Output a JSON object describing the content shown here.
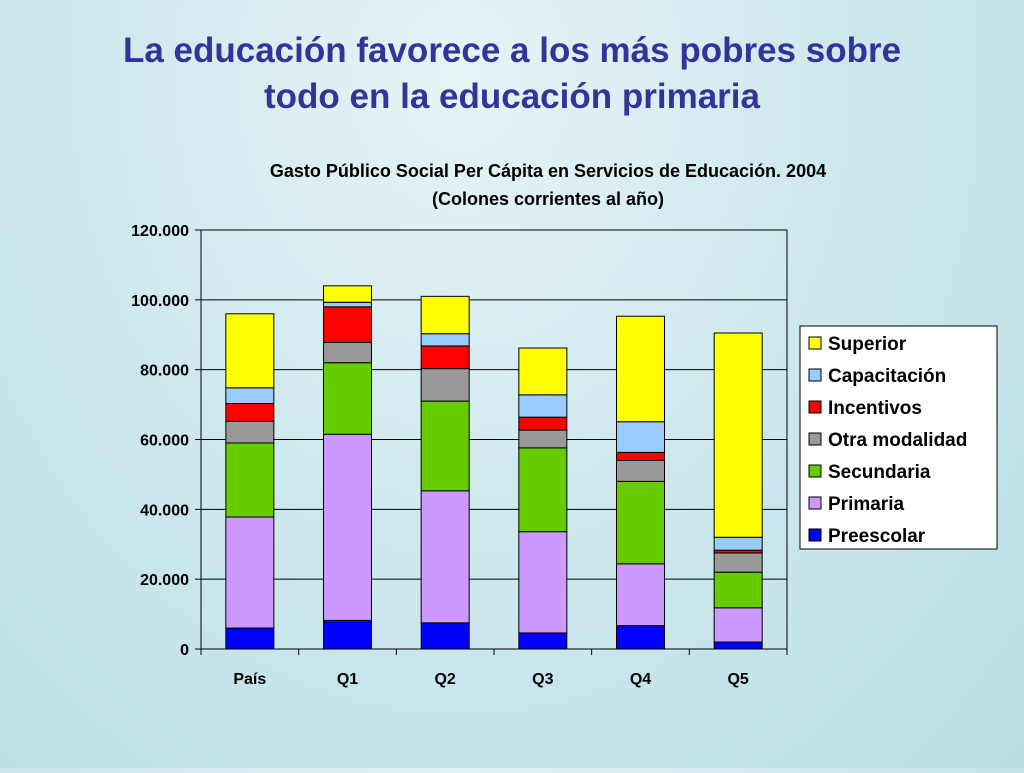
{
  "slide": {
    "title_line1": "La educación favorece a los más pobres sobre",
    "title_line2": "todo en la educación primaria"
  },
  "chart_data": {
    "type": "bar",
    "stacked": true,
    "title": "Gasto Público Social Per Cápita en Servicios de Educación. 2004",
    "subtitle": "(Colones corrientes al año)",
    "categories": [
      "País",
      "Q1",
      "Q2",
      "Q3",
      "Q4",
      "Q5"
    ],
    "ylim": [
      0,
      120000
    ],
    "yticks": [
      0,
      20000,
      40000,
      60000,
      80000,
      100000,
      120000
    ],
    "ytick_labels": [
      "0",
      "20.000",
      "40.000",
      "60.000",
      "80.000",
      "100.000",
      "120.000"
    ],
    "grid": true,
    "legend_position": "right",
    "series": [
      {
        "name": "Preescolar",
        "color": "#0000ff",
        "values": [
          6000,
          8200,
          7500,
          4600,
          6700,
          2000
        ]
      },
      {
        "name": "Primaria",
        "color": "#cc99ff",
        "values": [
          31800,
          53300,
          37800,
          29000,
          17700,
          9800
        ]
      },
      {
        "name": "Secundaria",
        "color": "#66cc00",
        "values": [
          21200,
          20500,
          25700,
          24000,
          23600,
          10200
        ]
      },
      {
        "name": "Otra modalidad",
        "color": "#999999",
        "values": [
          6200,
          5800,
          9300,
          5100,
          6000,
          5500
        ]
      },
      {
        "name": "Incentivos",
        "color": "#ff0000",
        "values": [
          5100,
          10200,
          6500,
          3700,
          2300,
          800
        ]
      },
      {
        "name": "Capacitación",
        "color": "#99ccff",
        "values": [
          4500,
          1300,
          3500,
          6400,
          8800,
          3700
        ]
      },
      {
        "name": "Superior",
        "color": "#ffff00",
        "values": [
          21200,
          4700,
          10700,
          13400,
          30200,
          58500
        ]
      }
    ]
  }
}
